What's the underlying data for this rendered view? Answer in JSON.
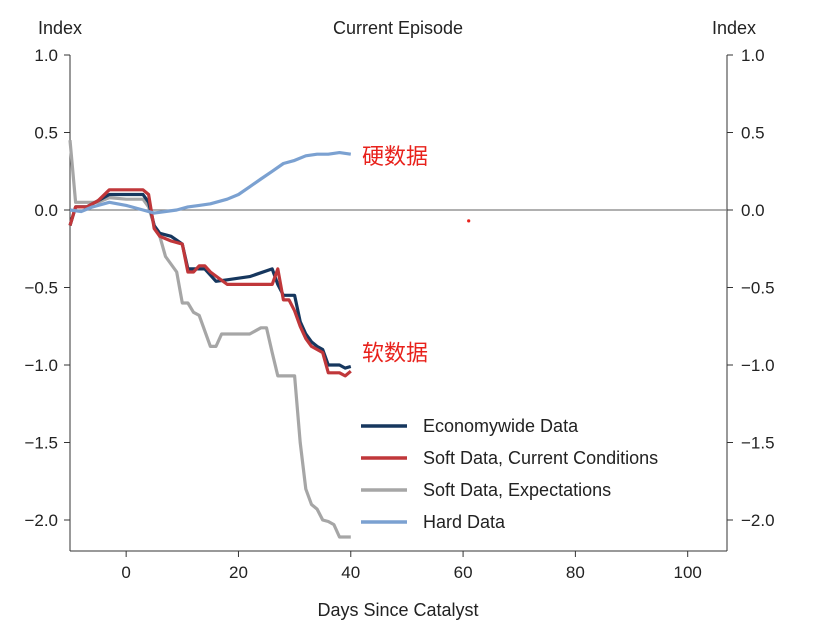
{
  "chart_data": {
    "type": "line",
    "title": "Current Episode",
    "xlabel": "Days Since Catalyst",
    "ylabel_left": "Index",
    "ylabel_right": "Index",
    "xlim": [
      -10,
      107
    ],
    "ylim": [
      -2.2,
      1.0
    ],
    "x_ticks": [
      0,
      20,
      40,
      60,
      80,
      100
    ],
    "y_ticks": [
      1.0,
      0.5,
      0.0,
      -0.5,
      -1.0,
      -1.5,
      -2.0
    ],
    "y_tick_labels": [
      "1.0",
      "0.5",
      "0.0",
      "−0.5",
      "−1.0",
      "−1.5",
      "−2.0"
    ],
    "zero_line": true,
    "legend_position": "lower-right",
    "series": [
      {
        "name": "Economywide Data",
        "color": "#16375e",
        "points": [
          [
            -10,
            -0.1
          ],
          [
            -9,
            0.02
          ],
          [
            -7,
            0.02
          ],
          [
            -5,
            0.06
          ],
          [
            -3,
            0.1
          ],
          [
            0,
            0.1
          ],
          [
            3,
            0.1
          ],
          [
            4,
            0.05
          ],
          [
            5,
            -0.1
          ],
          [
            6,
            -0.15
          ],
          [
            8,
            -0.17
          ],
          [
            10,
            -0.22
          ],
          [
            11,
            -0.38
          ],
          [
            14,
            -0.38
          ],
          [
            15,
            -0.42
          ],
          [
            16,
            -0.46
          ],
          [
            18,
            -0.45
          ],
          [
            22,
            -0.43
          ],
          [
            26,
            -0.38
          ],
          [
            27,
            -0.48
          ],
          [
            28,
            -0.55
          ],
          [
            30,
            -0.55
          ],
          [
            31,
            -0.72
          ],
          [
            32,
            -0.8
          ],
          [
            33,
            -0.85
          ],
          [
            34,
            -0.88
          ],
          [
            35,
            -0.9
          ],
          [
            36,
            -1.0
          ],
          [
            38,
            -1.0
          ],
          [
            39,
            -1.02
          ],
          [
            40,
            -1.01
          ]
        ]
      },
      {
        "name": "Soft Data, Current Conditions",
        "color": "#c0373a",
        "points": [
          [
            -10,
            -0.1
          ],
          [
            -9,
            0.02
          ],
          [
            -7,
            0.02
          ],
          [
            -5,
            0.06
          ],
          [
            -3,
            0.13
          ],
          [
            0,
            0.13
          ],
          [
            3,
            0.13
          ],
          [
            4,
            0.1
          ],
          [
            5,
            -0.12
          ],
          [
            6,
            -0.17
          ],
          [
            8,
            -0.2
          ],
          [
            10,
            -0.22
          ],
          [
            11,
            -0.4
          ],
          [
            12,
            -0.4
          ],
          [
            13,
            -0.36
          ],
          [
            14,
            -0.36
          ],
          [
            15,
            -0.4
          ],
          [
            18,
            -0.48
          ],
          [
            22,
            -0.48
          ],
          [
            26,
            -0.48
          ],
          [
            27,
            -0.38
          ],
          [
            28,
            -0.58
          ],
          [
            29,
            -0.58
          ],
          [
            30,
            -0.65
          ],
          [
            31,
            -0.75
          ],
          [
            32,
            -0.83
          ],
          [
            33,
            -0.88
          ],
          [
            34,
            -0.9
          ],
          [
            35,
            -0.92
          ],
          [
            36,
            -1.05
          ],
          [
            38,
            -1.05
          ],
          [
            39,
            -1.07
          ],
          [
            40,
            -1.04
          ]
        ]
      },
      {
        "name": "Soft Data, Expectations",
        "color": "#a6a6a6",
        "points": [
          [
            -10,
            0.45
          ],
          [
            -9,
            0.05
          ],
          [
            -7,
            0.05
          ],
          [
            -5,
            0.05
          ],
          [
            -3,
            0.08
          ],
          [
            0,
            0.07
          ],
          [
            3,
            0.07
          ],
          [
            4,
            0.02
          ],
          [
            5,
            -0.1
          ],
          [
            6,
            -0.17
          ],
          [
            7,
            -0.3
          ],
          [
            9,
            -0.4
          ],
          [
            10,
            -0.6
          ],
          [
            11,
            -0.6
          ],
          [
            12,
            -0.66
          ],
          [
            13,
            -0.68
          ],
          [
            14,
            -0.78
          ],
          [
            15,
            -0.88
          ],
          [
            16,
            -0.88
          ],
          [
            17,
            -0.8
          ],
          [
            20,
            -0.8
          ],
          [
            22,
            -0.8
          ],
          [
            24,
            -0.76
          ],
          [
            25,
            -0.76
          ],
          [
            26,
            -0.92
          ],
          [
            27,
            -1.07
          ],
          [
            29,
            -1.07
          ],
          [
            30,
            -1.07
          ],
          [
            31,
            -1.5
          ],
          [
            32,
            -1.8
          ],
          [
            33,
            -1.9
          ],
          [
            34,
            -1.93
          ],
          [
            35,
            -2.0
          ],
          [
            36,
            -2.01
          ],
          [
            37,
            -2.03
          ],
          [
            38,
            -2.11
          ],
          [
            40,
            -2.11
          ]
        ]
      },
      {
        "name": "Hard Data",
        "color": "#7ba1d1",
        "points": [
          [
            -10,
            0.0
          ],
          [
            -8,
            -0.01
          ],
          [
            -6,
            0.02
          ],
          [
            -3,
            0.05
          ],
          [
            0,
            0.03
          ],
          [
            3,
            0.0
          ],
          [
            5,
            -0.02
          ],
          [
            7,
            -0.01
          ],
          [
            9,
            0.0
          ],
          [
            11,
            0.02
          ],
          [
            13,
            0.03
          ],
          [
            15,
            0.04
          ],
          [
            18,
            0.07
          ],
          [
            20,
            0.1
          ],
          [
            22,
            0.15
          ],
          [
            24,
            0.2
          ],
          [
            26,
            0.25
          ],
          [
            28,
            0.3
          ],
          [
            30,
            0.32
          ],
          [
            32,
            0.35
          ],
          [
            34,
            0.36
          ],
          [
            36,
            0.36
          ],
          [
            38,
            0.37
          ],
          [
            40,
            0.36
          ]
        ]
      }
    ],
    "annotations": [
      {
        "text": "硬数据",
        "x": 42,
        "y": 0.35,
        "color": "#e8211b"
      },
      {
        "text": "软数据",
        "x": 42,
        "y": -0.92,
        "color": "#e8211b"
      }
    ],
    "markers": [
      {
        "x": 61,
        "y": -0.07,
        "color": "#e8211b"
      }
    ]
  }
}
